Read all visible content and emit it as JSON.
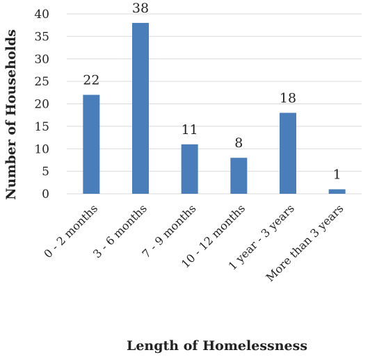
{
  "chart_data": {
    "type": "bar",
    "categories": [
      "0 - 2 months",
      "3 - 6 months",
      "7 - 9 months",
      "10 - 12 months",
      "1 year - 3 years",
      "More than 3 years"
    ],
    "values": [
      22,
      38,
      11,
      8,
      18,
      1
    ],
    "data_labels": [
      "22",
      "38",
      "11",
      "8",
      "18",
      "1"
    ],
    "xlabel": "Length of Homelessness",
    "ylabel": "Number of Households",
    "ylim": [
      0,
      40
    ],
    "yticks": [
      "0",
      "5",
      "10",
      "15",
      "20",
      "25",
      "30",
      "35",
      "40"
    ],
    "grid": true,
    "legend": "none",
    "colors": {
      "bar": "#4a7ebb",
      "grid": "#d9d9d9",
      "text": "#222222"
    }
  }
}
